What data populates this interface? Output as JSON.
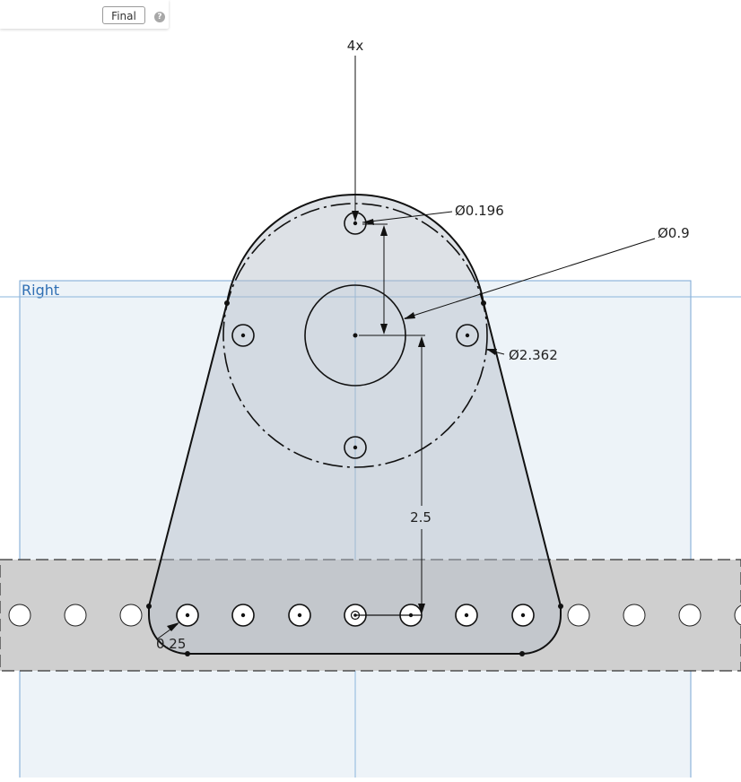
{
  "toolbar": {
    "final_label": "Final",
    "help_icon": "question-mark-icon",
    "help_glyph": "?"
  },
  "plane": {
    "label": "Right"
  },
  "dimensions": {
    "pattern_count": "4x",
    "small_hole_diameter": "Ø0.196",
    "center_hole_diameter": "Ø0.9",
    "bolt_circle_diameter": "Ø2.362",
    "center_height": "2.5",
    "fillet_radius": "0.25"
  },
  "colors": {
    "plane_fill": "#edf3f8",
    "plane_border": "#7aa7d4",
    "plane_label": "#2f6fb3",
    "bar_fill": "#cfcfcf",
    "part_fill": "#b3bcc7",
    "sketch_line": "#111111"
  }
}
